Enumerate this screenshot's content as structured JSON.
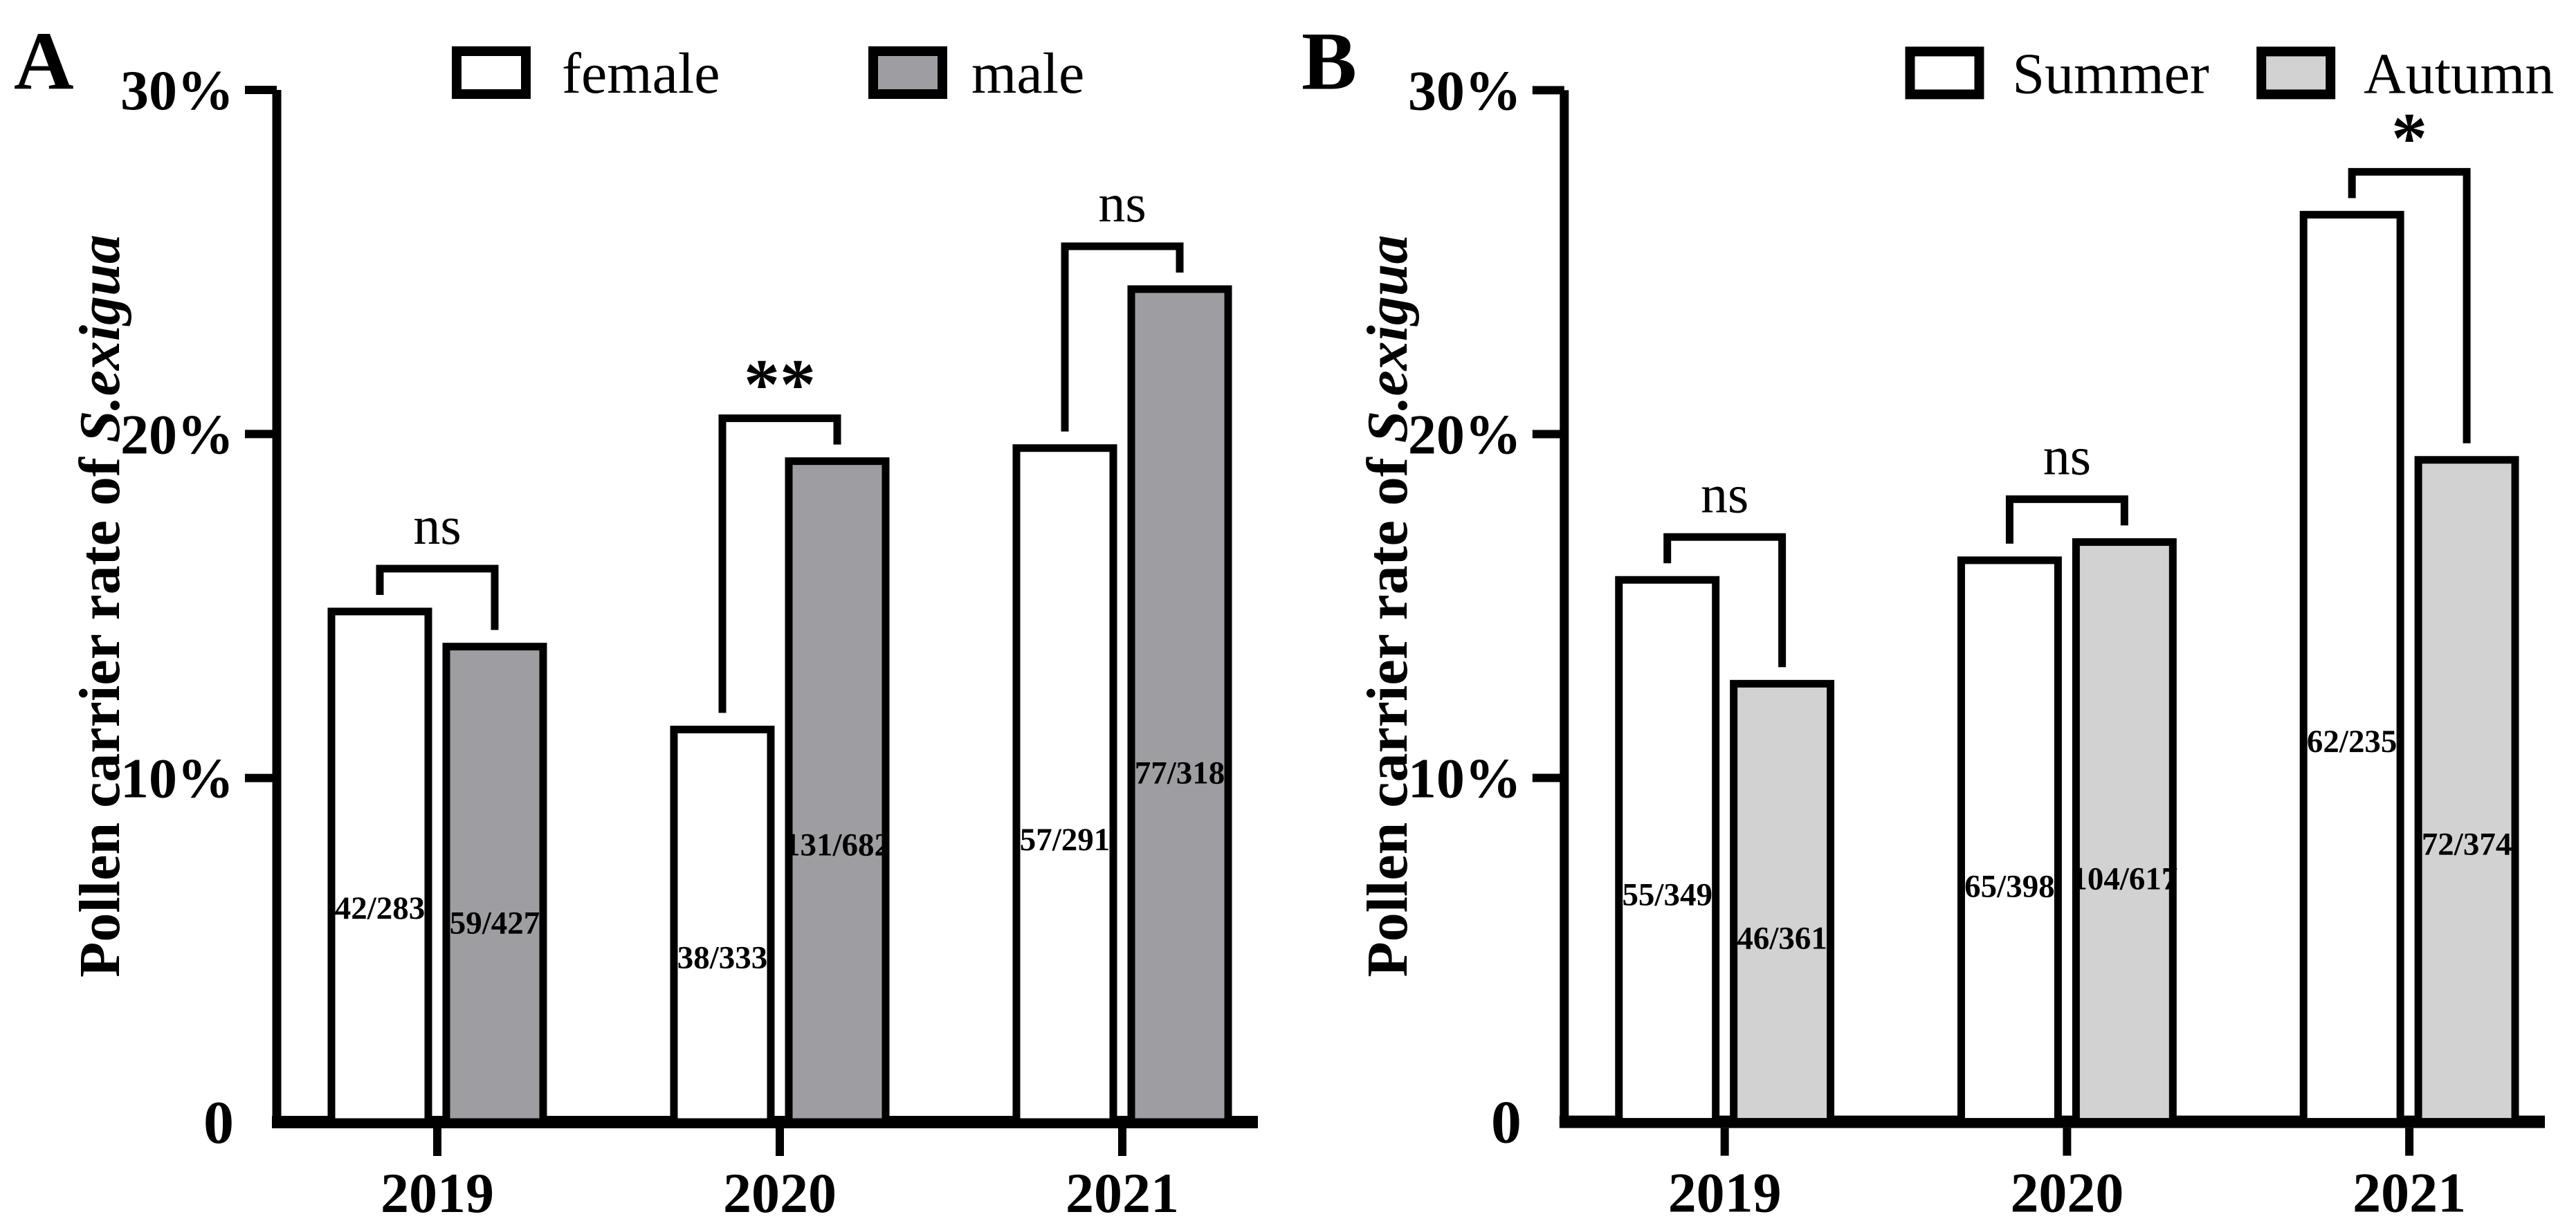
{
  "page": {
    "background": "#ffffff",
    "ink_color": "#000000"
  },
  "chart_data": [
    {
      "type": "bar",
      "panel_label": "A",
      "title": "",
      "ylabel_prefix": "Pollen carrier rate of ",
      "ylabel_species": "S.exigua",
      "xlabel": "",
      "ylim": [
        0,
        30
      ],
      "grid": false,
      "legend_position": "top",
      "y_ticks": [
        {
          "pct": 0,
          "label": "0"
        },
        {
          "pct": 10,
          "label": "10%"
        },
        {
          "pct": 20,
          "label": "20%"
        },
        {
          "pct": 30,
          "label": "30%"
        }
      ],
      "categories": [
        "2019",
        "2020",
        "2021"
      ],
      "series": [
        {
          "name": "female",
          "fill": "#ffffff",
          "values_pct": [
            14.84,
            11.41,
            19.59
          ],
          "fraction_labels": [
            "42/283",
            "38/333",
            "57/291"
          ]
        },
        {
          "name": "male",
          "fill": "#9e9ea2",
          "values_pct": [
            13.82,
            19.21,
            24.21
          ],
          "fraction_labels": [
            "59/427",
            "131/682",
            "77/318"
          ]
        }
      ],
      "significance": [
        "ns",
        "**",
        "ns"
      ]
    },
    {
      "type": "bar",
      "panel_label": "B",
      "title": "",
      "ylabel_prefix": "Pollen carrier rate of ",
      "ylabel_species": "S.exigua",
      "xlabel": "",
      "ylim": [
        0,
        30
      ],
      "grid": false,
      "legend_position": "top",
      "y_ticks": [
        {
          "pct": 0,
          "label": "0"
        },
        {
          "pct": 10,
          "label": "10%"
        },
        {
          "pct": 20,
          "label": "20%"
        },
        {
          "pct": 30,
          "label": "30%"
        }
      ],
      "categories": [
        "2019",
        "2020",
        "2021"
      ],
      "series": [
        {
          "name": "Summer",
          "fill": "#ffffff",
          "values_pct": [
            15.76,
            16.33,
            26.38
          ],
          "fraction_labels": [
            "55/349",
            "65/398",
            "62/235"
          ]
        },
        {
          "name": "Autumn",
          "fill": "#d2d2d2",
          "values_pct": [
            12.74,
            16.86,
            19.25
          ],
          "fraction_labels": [
            "46/361",
            "104/617",
            "72/374"
          ]
        }
      ],
      "significance": [
        "ns",
        "ns",
        "*"
      ]
    }
  ]
}
